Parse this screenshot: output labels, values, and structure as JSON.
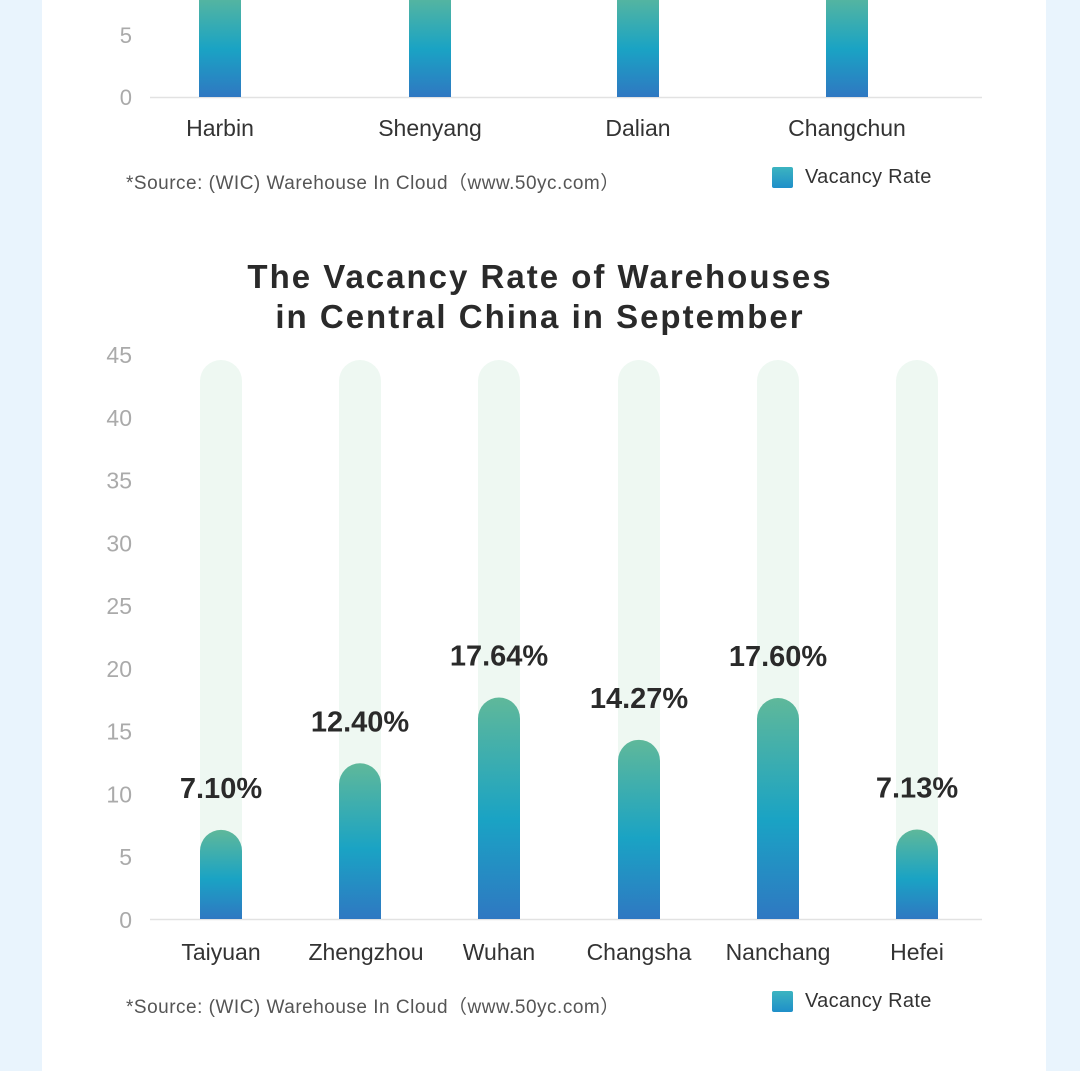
{
  "chart_data": [
    {
      "type": "bar",
      "title": "",
      "categories": [
        "Harbin",
        "Shenyang",
        "Dalian",
        "Changchun"
      ],
      "series": [
        {
          "name": "Vacancy Rate"
        }
      ],
      "y_ticks_visible": [
        "5",
        "0"
      ],
      "source": "*Source: (WIC) Warehouse In Cloud（www.50yc.com）",
      "legend": "Vacancy Rate",
      "legend_position": "bottom-right"
    },
    {
      "type": "bar",
      "title_lines": [
        "The Vacancy Rate of Warehouses",
        "in Central China in September"
      ],
      "categories": [
        "Taiyuan",
        "Zhengzhou",
        "Wuhan",
        "Changsha",
        "Nanchang",
        "Hefei"
      ],
      "values": [
        7.1,
        12.4,
        17.64,
        14.27,
        17.6,
        7.13
      ],
      "value_labels": [
        "7.10%",
        "12.40%",
        "17.64%",
        "14.27%",
        "17.60%",
        "7.13%"
      ],
      "ylim": [
        0,
        45
      ],
      "yticks": [
        "0",
        "5",
        "10",
        "15",
        "20",
        "25",
        "30",
        "35",
        "40",
        "45"
      ],
      "grid": false,
      "source": "*Source: (WIC) Warehouse In Cloud（www.50yc.com）",
      "legend": "Vacancy Rate",
      "legend_position": "bottom-right"
    }
  ],
  "colors": {
    "bar_top": "#5fb89a",
    "bar_mid": "#1aa3c4",
    "bar_bottom": "#2f78c2",
    "track": "#eef8f2",
    "page_bg": "#e9f4fd"
  }
}
